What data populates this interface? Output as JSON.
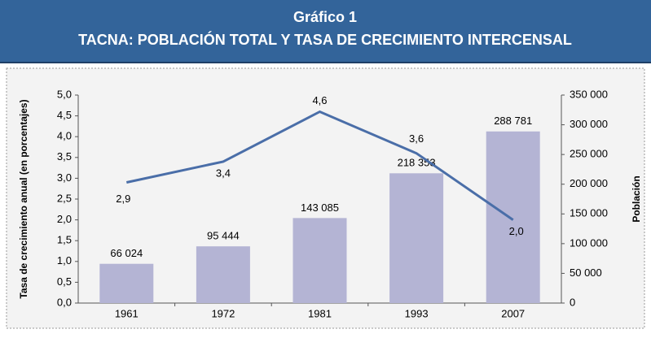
{
  "chart_data": {
    "type": "bar_line",
    "title": "Gráfico 1",
    "subtitle": "TACNA: POBLACIÓN TOTAL Y TASA DE CRECIMIENTO INTERCENSAL",
    "y_label": "Tasa de crecimiento anual (en porcentajes)",
    "y2_label": "Población",
    "categories": [
      "1961",
      "1972",
      "1981",
      "1993",
      "2007"
    ],
    "series": [
      {
        "type": "bar",
        "axis": "y2",
        "color": "#b4b4d4",
        "values": [
          66024,
          95444,
          143085,
          218353,
          288781
        ],
        "value_labels": [
          "66 024",
          "95 444",
          "143 085",
          "218 353",
          "288 781"
        ]
      },
      {
        "type": "line",
        "axis": "y",
        "color": "#4a6ea8",
        "values": [
          2.9,
          3.4,
          4.6,
          3.6,
          2.0
        ],
        "value_labels": [
          "2,9",
          "3,4",
          "4,6",
          "3,6",
          "2,0"
        ]
      }
    ],
    "ylim": [
      0,
      5
    ],
    "yticks": [
      {
        "value": 0,
        "label": "0,0"
      },
      {
        "value": 0.5,
        "label": "0,5"
      },
      {
        "value": 1,
        "label": "1,0"
      },
      {
        "value": 1.5,
        "label": "1,5"
      },
      {
        "value": 2,
        "label": "2,0"
      },
      {
        "value": 2.5,
        "label": "2,5"
      },
      {
        "value": 3,
        "label": "3,0"
      },
      {
        "value": 3.5,
        "label": "3,5"
      },
      {
        "value": 4,
        "label": "4,0"
      },
      {
        "value": 4.5,
        "label": "4,5"
      },
      {
        "value": 5,
        "label": "5,0"
      }
    ],
    "y2lim": [
      0,
      350000
    ],
    "y2ticks": [
      0,
      {
        "value": 50000,
        "label": "50 000"
      },
      {
        "value": 100000,
        "label": "100 000"
      },
      {
        "value": 150000,
        "label": "150 000"
      },
      {
        "value": 200000,
        "label": "200 000"
      },
      {
        "value": 250000,
        "label": "250 000"
      },
      {
        "value": 300000,
        "label": "300 000"
      },
      {
        "value": 350000,
        "label": "350 000"
      }
    ]
  }
}
